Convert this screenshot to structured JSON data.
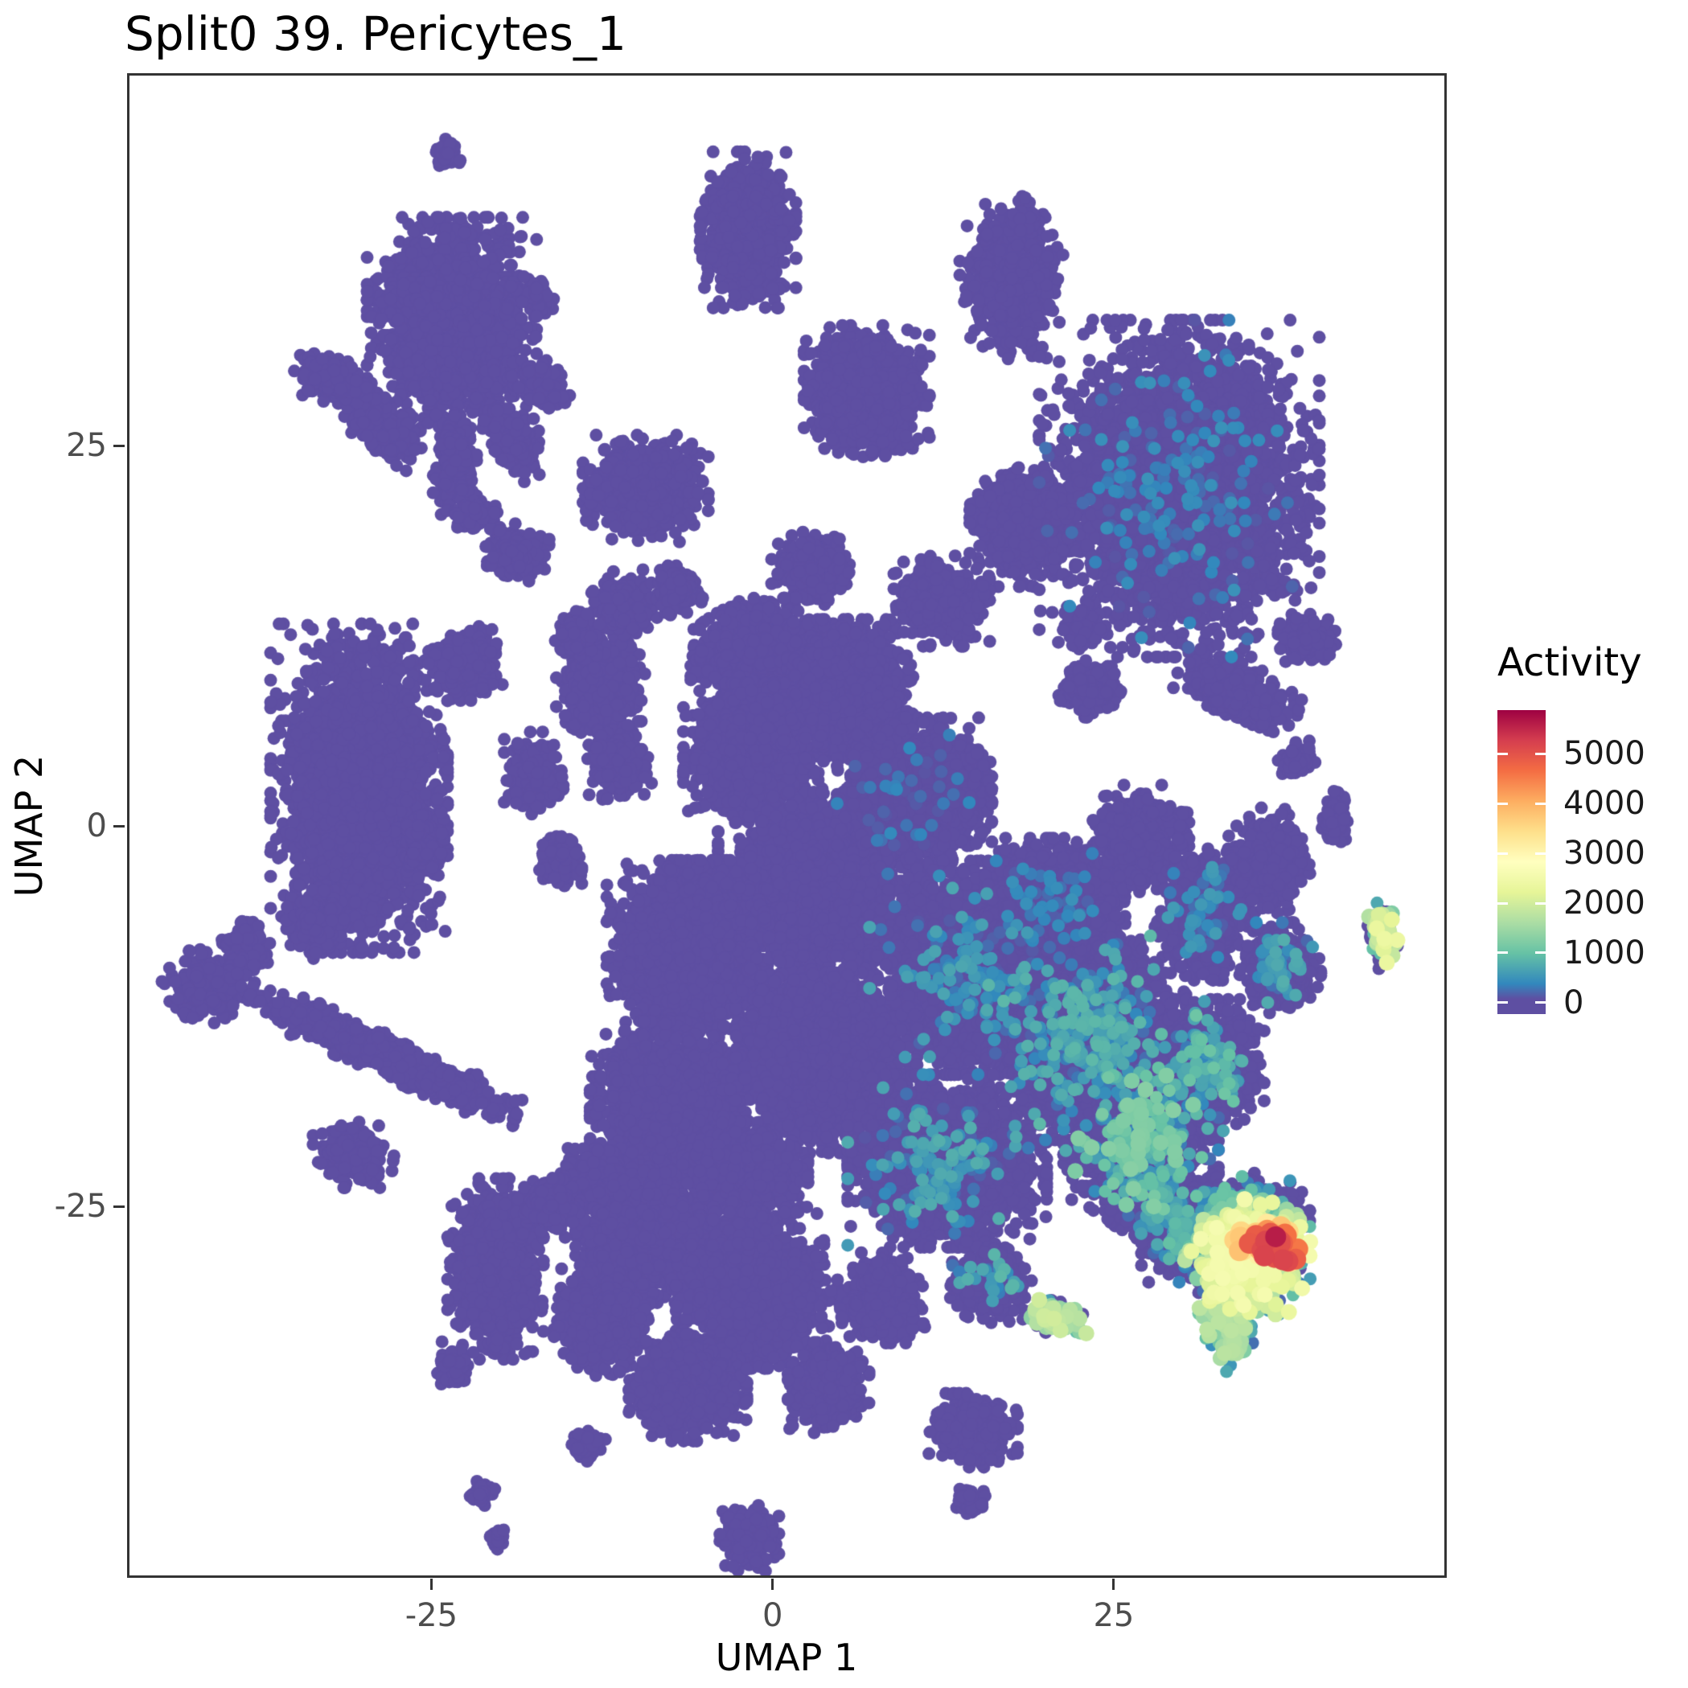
{
  "title": "Split0 39. Pericytes_1",
  "axes": {
    "x": {
      "label": "UMAP 1",
      "range": [
        -47.3,
        49.4
      ],
      "ticks": [
        -25,
        0,
        25
      ]
    },
    "y": {
      "label": "UMAP 2",
      "range": [
        -49.4,
        49.5
      ],
      "ticks": [
        -25,
        0,
        25
      ]
    }
  },
  "legend": {
    "title": "Activity",
    "ticks": [
      0,
      1000,
      2000,
      3000,
      4000,
      5000
    ],
    "bar_range": [
      -230,
      5880
    ]
  },
  "colors": {
    "background": "#FFFFFF",
    "panel_border": "#333333",
    "title_color": "#000000",
    "axis_text": "#4D4D4D",
    "zero_activity_point": "#5E4FA2",
    "max_activity_point": "#9E0142",
    "colormap": [
      {
        "t": 0.0,
        "c": "#5E4FA2"
      },
      {
        "t": 0.05,
        "c": "#5E4FA2"
      },
      {
        "t": 0.1,
        "c": "#3288BD"
      },
      {
        "t": 0.2,
        "c": "#66C2A5"
      },
      {
        "t": 0.3,
        "c": "#ABDDA4"
      },
      {
        "t": 0.4,
        "c": "#E6F598"
      },
      {
        "t": 0.5,
        "c": "#FFFFBF"
      },
      {
        "t": 0.6,
        "c": "#FEE08B"
      },
      {
        "t": 0.7,
        "c": "#FDAE61"
      },
      {
        "t": 0.8,
        "c": "#F46D43"
      },
      {
        "t": 0.9,
        "c": "#D53E4F"
      },
      {
        "t": 1.0,
        "c": "#9E0142"
      }
    ]
  },
  "chart_data": {
    "type": "scatter",
    "title": "Split0 39. Pericytes_1",
    "xlabel": "UMAP 1",
    "ylabel": "UMAP 2",
    "color_variable": "Activity",
    "activity_min": 0,
    "activity_max": 5600,
    "xlim": [
      -47.3,
      49.4
    ],
    "ylim": [
      -49.4,
      49.5
    ],
    "grid": false,
    "legend_position": "right",
    "note": "Dense single-cell UMAP; point cloud approximated by gaussian clusters. x/y = cluster center in UMAP coords, sx/sy = spread, rot = degrees, n = cells, f = fraction of cells with nonzero activity sampled uniformly in [a0,a1]. Highest-activity hotspot is at lower right (~x 33-40, y -25 to -34).",
    "clusters": [
      {
        "x": -23.9,
        "y": 44.3,
        "sx": 0.4,
        "sy": 0.4,
        "n": 40
      },
      {
        "x": -1.8,
        "y": 39.2,
        "sx": 1.3,
        "sy": 1.9,
        "n": 1100
      },
      {
        "x": 17.5,
        "y": 36.0,
        "sx": 1.4,
        "sy": 2.0,
        "n": 900
      },
      {
        "x": -17.2,
        "y": 34.6,
        "sx": 0.5,
        "sy": 0.5,
        "n": 90
      },
      {
        "x": -23.5,
        "y": 33.0,
        "sx": 2.3,
        "sy": 2.6,
        "n": 2600
      },
      {
        "x": -28.8,
        "y": 26.5,
        "sx": 1.3,
        "sy": 0.7,
        "rot": -40,
        "n": 350
      },
      {
        "x": -32.5,
        "y": 29.5,
        "sx": 1.1,
        "sy": 0.6,
        "rot": -15,
        "n": 250
      },
      {
        "x": -23.3,
        "y": 24.0,
        "sx": 0.6,
        "sy": 1.3,
        "n": 280
      },
      {
        "x": -19.0,
        "y": 25.5,
        "sx": 0.7,
        "sy": 1.1,
        "rot": 25,
        "n": 220
      },
      {
        "x": -21.8,
        "y": 20.5,
        "sx": 0.6,
        "sy": 0.4,
        "n": 110
      },
      {
        "x": -17.0,
        "y": 29.0,
        "sx": 0.8,
        "sy": 0.6,
        "n": 150
      },
      {
        "x": 6.9,
        "y": 28.6,
        "sx": 1.7,
        "sy": 1.6,
        "n": 1300
      },
      {
        "x": -9.3,
        "y": 22.2,
        "sx": 1.7,
        "sy": 1.3,
        "n": 1000
      },
      {
        "x": 18.5,
        "y": 19.8,
        "sx": 1.5,
        "sy": 1.5,
        "n": 950
      },
      {
        "x": 29.8,
        "y": 22.2,
        "sx": 3.8,
        "sy": 4.1,
        "n": 4500,
        "f": 0.05,
        "a0": 100,
        "a1": 500
      },
      {
        "x": 22.5,
        "y": 13.0,
        "sx": 0.6,
        "sy": 0.5,
        "n": 120
      },
      {
        "x": -18.8,
        "y": 18.0,
        "sx": 0.9,
        "sy": 0.7,
        "n": 260
      },
      {
        "x": -22.5,
        "y": 10.7,
        "sx": 1.0,
        "sy": 0.9,
        "n": 350
      },
      {
        "x": -12.6,
        "y": 9.0,
        "sx": 1.2,
        "sy": 1.5,
        "n": 700
      },
      {
        "x": -11.3,
        "y": 4.2,
        "sx": 0.9,
        "sy": 0.9,
        "n": 350
      },
      {
        "x": -30.3,
        "y": 2.5,
        "sx": 2.4,
        "sy": 4.0,
        "n": 3800
      },
      {
        "x": -33.5,
        "y": -6.3,
        "sx": 0.9,
        "sy": 0.9,
        "n": 250
      },
      {
        "x": -38.6,
        "y": -8.0,
        "sx": 0.7,
        "sy": 0.7,
        "n": 170
      },
      {
        "x": -41.5,
        "y": -10.5,
        "sx": 1.2,
        "sy": 0.9,
        "n": 300
      },
      {
        "x": -28.5,
        "y": -15.0,
        "sx": 3.9,
        "sy": 0.5,
        "rot": -22,
        "n": 1400
      },
      {
        "x": -30.7,
        "y": -21.6,
        "sx": 1.1,
        "sy": 0.8,
        "n": 280
      },
      {
        "x": 2.9,
        "y": 16.9,
        "sx": 1.1,
        "sy": 0.9,
        "n": 500
      },
      {
        "x": 12.4,
        "y": 14.8,
        "sx": 1.3,
        "sy": 1.1,
        "n": 600
      },
      {
        "x": -10.9,
        "y": 14.7,
        "sx": 0.9,
        "sy": 0.8,
        "n": 350
      },
      {
        "x": -7.0,
        "y": 15.5,
        "sx": 0.7,
        "sy": 0.6,
        "n": 250
      },
      {
        "x": -14.3,
        "y": 12.5,
        "sx": 0.6,
        "sy": 0.6,
        "n": 180
      },
      {
        "x": 23.4,
        "y": 9.0,
        "sx": 0.9,
        "sy": 0.7,
        "n": 300
      },
      {
        "x": -17.5,
        "y": 3.5,
        "sx": 0.8,
        "sy": 1.0,
        "n": 350
      },
      {
        "x": -15.6,
        "y": -2.3,
        "sx": 0.6,
        "sy": 0.6,
        "n": 200
      },
      {
        "x": -25.5,
        "y": -1.6,
        "sx": 0.6,
        "sy": 0.6,
        "n": 150
      },
      {
        "x": -1.4,
        "y": 11.5,
        "sx": 1.7,
        "sy": 1.3,
        "n": 1400
      },
      {
        "x": 5.7,
        "y": 9.0,
        "sx": 1.7,
        "sy": 1.7,
        "n": 1700
      },
      {
        "x": -1.4,
        "y": 4.8,
        "sx": 1.9,
        "sy": 1.7,
        "n": 2000
      },
      {
        "x": 10.4,
        "y": 2.0,
        "sx": 2.1,
        "sy": 1.9,
        "n": 2400,
        "f": 0.02,
        "a0": 100,
        "a1": 400
      },
      {
        "x": 3.3,
        "y": -3.7,
        "sx": 2.7,
        "sy": 2.2,
        "n": 3200
      },
      {
        "x": -6.2,
        "y": -7.9,
        "sx": 2.2,
        "sy": 2.1,
        "n": 2700
      },
      {
        "x": 14.4,
        "y": -9.3,
        "sx": 2.7,
        "sy": 2.6,
        "n": 3800,
        "f": 0.04,
        "a0": 100,
        "a1": 700
      },
      {
        "x": 23.0,
        "y": -13.6,
        "sx": 2.7,
        "sy": 2.6,
        "n": 3800,
        "f": 0.08,
        "a0": 150,
        "a1": 900
      },
      {
        "x": 3.3,
        "y": -15.0,
        "sx": 2.7,
        "sy": 2.4,
        "n": 3100
      },
      {
        "x": -7.7,
        "y": -18.5,
        "sx": 2.1,
        "sy": 2.1,
        "n": 2300
      },
      {
        "x": -2.0,
        "y": -23.0,
        "sx": 1.7,
        "sy": 1.1,
        "n": 1100
      },
      {
        "x": -13.0,
        "y": -23.0,
        "sx": 1.0,
        "sy": 0.8,
        "n": 400
      },
      {
        "x": 12.8,
        "y": -22.0,
        "sx": 2.7,
        "sy": 2.1,
        "n": 3100,
        "f": 0.05,
        "a0": 100,
        "a1": 800
      },
      {
        "x": 27.0,
        "y": -20.6,
        "sx": 2.1,
        "sy": 2.1,
        "n": 2300,
        "f": 0.12,
        "a0": 200,
        "a1": 1300
      },
      {
        "x": 31.7,
        "y": -15.7,
        "sx": 1.6,
        "sy": 1.6,
        "n": 1200,
        "f": 0.1,
        "a0": 200,
        "a1": 1100
      },
      {
        "x": 20.7,
        "y": -5.1,
        "sx": 1.9,
        "sy": 1.6,
        "n": 1600,
        "f": 0.03,
        "a0": 100,
        "a1": 500
      },
      {
        "x": 27.0,
        "y": -0.8,
        "sx": 1.3,
        "sy": 1.3,
        "n": 850
      },
      {
        "x": 31.7,
        "y": -5.8,
        "sx": 1.3,
        "sy": 1.6,
        "n": 1000,
        "f": 0.05,
        "a0": 100,
        "a1": 600
      },
      {
        "x": 36.4,
        "y": -2.3,
        "sx": 1.1,
        "sy": 1.3,
        "n": 650
      },
      {
        "x": 37.2,
        "y": -9.3,
        "sx": 1.1,
        "sy": 1.1,
        "n": 550,
        "f": 0.08,
        "a0": 150,
        "a1": 800
      },
      {
        "x": 34.1,
        "y": 8.8,
        "sx": 1.7,
        "sy": 0.7,
        "rot": -18,
        "n": 750
      },
      {
        "x": 39.2,
        "y": 12.3,
        "sx": 0.8,
        "sy": 0.6,
        "n": 260
      },
      {
        "x": 38.4,
        "y": 4.4,
        "sx": 0.5,
        "sy": 0.5,
        "n": 120
      },
      {
        "x": 41.2,
        "y": 0.6,
        "sx": 0.4,
        "sy": 0.8,
        "n": 140
      },
      {
        "x": 44.7,
        "y": -7.2,
        "sx": 0.4,
        "sy": 0.8,
        "n": 130,
        "f": 0.5,
        "a0": 600,
        "a1": 2400
      },
      {
        "x": 28.5,
        "y": -25.0,
        "sx": 1.1,
        "sy": 1.0,
        "n": 600,
        "f": 0.12,
        "a0": 150,
        "a1": 900
      },
      {
        "x": 30.0,
        "y": -27.0,
        "sx": 1.1,
        "sy": 1.1,
        "n": 600,
        "f": 0.15,
        "a0": 150,
        "a1": 1000
      },
      {
        "x": 34.5,
        "y": -25.5,
        "sx": 1.8,
        "sy": 1.0,
        "n": 700,
        "f": 0.25,
        "a0": 150,
        "a1": 1200
      },
      {
        "x": 34.8,
        "y": -28.3,
        "sx": 1.7,
        "sy": 1.4,
        "n": 950,
        "f": 0.9,
        "a0": 150,
        "a1": 2600
      },
      {
        "x": 36.4,
        "y": -27.3,
        "sx": 1.0,
        "sy": 0.6,
        "n": 70,
        "f": 1.0,
        "a0": 3000,
        "a1": 5200
      },
      {
        "x": 33.3,
        "y": -32.3,
        "sx": 0.7,
        "sy": 1.3,
        "rot": 18,
        "n": 350,
        "f": 0.8,
        "a0": 150,
        "a1": 1800
      },
      {
        "x": 36.8,
        "y": -27.0,
        "sx": 0.05,
        "sy": 0.05,
        "n": 1,
        "f": 1.0,
        "a0": 5600,
        "a1": 5600
      },
      {
        "x": 20.7,
        "y": -32.3,
        "sx": 0.9,
        "sy": 0.4,
        "rot": -10,
        "n": 160,
        "f": 0.75,
        "a0": 300,
        "a1": 2000
      },
      {
        "x": 8.0,
        "y": -31.0,
        "sx": 1.2,
        "sy": 1.1,
        "n": 700
      },
      {
        "x": 16.0,
        "y": -30.0,
        "sx": 1.1,
        "sy": 1.0,
        "n": 500,
        "f": 0.06,
        "a0": 150,
        "a1": 900
      },
      {
        "x": -9.3,
        "y": -27.0,
        "sx": 1.9,
        "sy": 1.6,
        "n": 1900
      },
      {
        "x": -1.4,
        "y": -30.5,
        "sx": 2.1,
        "sy": 1.9,
        "n": 2300
      },
      {
        "x": -6.2,
        "y": -36.9,
        "sx": 1.6,
        "sy": 1.3,
        "n": 1300
      },
      {
        "x": 4.1,
        "y": -36.9,
        "sx": 1.1,
        "sy": 1.1,
        "n": 650
      },
      {
        "x": -12.5,
        "y": -32.6,
        "sx": 1.3,
        "sy": 1.3,
        "n": 950
      },
      {
        "x": -20.3,
        "y": -29.1,
        "sx": 1.3,
        "sy": 2.2,
        "n": 1600
      },
      {
        "x": -16.5,
        "y": -25.0,
        "sx": 0.8,
        "sy": 0.8,
        "n": 250
      },
      {
        "x": -23.5,
        "y": -35.5,
        "sx": 0.6,
        "sy": 0.6,
        "n": 90
      },
      {
        "x": 14.7,
        "y": -39.7,
        "sx": 1.2,
        "sy": 0.9,
        "n": 650
      },
      {
        "x": 14.4,
        "y": -44.3,
        "sx": 0.5,
        "sy": 0.4,
        "n": 60
      },
      {
        "x": -21.3,
        "y": -43.8,
        "sx": 0.35,
        "sy": 0.35,
        "n": 45
      },
      {
        "x": -20.2,
        "y": -46.9,
        "sx": 0.3,
        "sy": 0.3,
        "n": 30
      },
      {
        "x": -1.7,
        "y": -46.8,
        "sx": 0.8,
        "sy": 0.8,
        "n": 320
      },
      {
        "x": -13.6,
        "y": -40.7,
        "sx": 0.5,
        "sy": 0.4,
        "n": 80
      }
    ]
  }
}
